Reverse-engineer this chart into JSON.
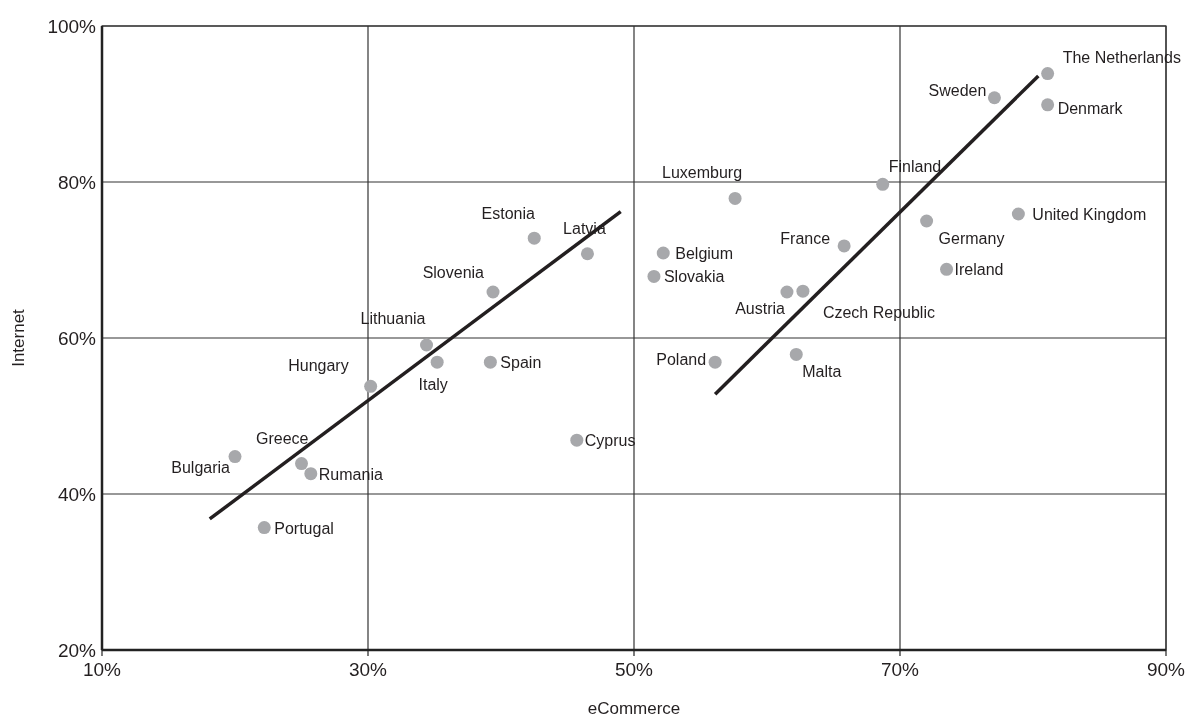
{
  "chart_data": {
    "type": "scatter",
    "xlabel": "eCommerce",
    "ylabel": "Internet",
    "xlim": [
      10,
      90
    ],
    "ylim": [
      20,
      100
    ],
    "xticks": [
      {
        "value": 10,
        "label": "10%"
      },
      {
        "value": 30,
        "label": "30%"
      },
      {
        "value": 50,
        "label": "50%"
      },
      {
        "value": 70,
        "label": "70%"
      },
      {
        "value": 90,
        "label": "90%"
      }
    ],
    "yticks": [
      {
        "value": 20,
        "label": "20%"
      },
      {
        "value": 40,
        "label": "40%"
      },
      {
        "value": 60,
        "label": "60%"
      },
      {
        "value": 80,
        "label": "80%"
      },
      {
        "value": 100,
        "label": "100%"
      }
    ],
    "grid": true,
    "series": [
      {
        "color": "#a7a8ab",
        "marker": "circle",
        "x": [
          42.5,
          46.5,
          39.4,
          34.4,
          35.2,
          39.2,
          30.2,
          45.7,
          20.0,
          25.0,
          25.7,
          22.2,
          81.1,
          77.1,
          81.1,
          68.7,
          57.6,
          78.9,
          72.0,
          65.8,
          52.2,
          51.5,
          73.5,
          61.5,
          62.7,
          56.1,
          62.2
        ],
        "values": [
          72.8,
          70.8,
          65.9,
          59.1,
          56.9,
          56.9,
          53.8,
          46.9,
          44.8,
          43.9,
          42.6,
          35.7,
          93.9,
          90.8,
          89.9,
          79.7,
          77.9,
          75.9,
          75.0,
          71.8,
          70.9,
          67.9,
          68.8,
          65.9,
          66.0,
          56.9,
          57.9
        ]
      },
      {
        "type": "line",
        "color": "#231f20",
        "x": [
          18.1,
          49.0
        ],
        "values": [
          36.8,
          76.2
        ],
        "marker": "none",
        "line_style": "solid"
      },
      {
        "type": "line",
        "color": "#231f20",
        "x": [
          56.1,
          80.4
        ],
        "values": [
          52.8,
          93.6
        ],
        "marker": "none",
        "line_style": "solid"
      }
    ],
    "annotations": [
      {
        "text": "Estonia",
        "x": 42.5,
        "y": 72.8
      },
      {
        "text": "Latvia",
        "x": 46.5,
        "y": 70.8
      },
      {
        "text": "Slovenia",
        "x": 39.4,
        "y": 65.9
      },
      {
        "text": "Lithuania",
        "x": 34.4,
        "y": 59.1
      },
      {
        "text": "Italy",
        "x": 35.2,
        "y": 56.9
      },
      {
        "text": "Spain",
        "x": 39.2,
        "y": 56.9
      },
      {
        "text": "Hungary",
        "x": 30.2,
        "y": 53.8
      },
      {
        "text": "Cyprus",
        "x": 45.7,
        "y": 46.9
      },
      {
        "text": "Bulgaria",
        "x": 20.0,
        "y": 44.8
      },
      {
        "text": "Greece",
        "x": 25.0,
        "y": 43.9
      },
      {
        "text": "Rumania",
        "x": 25.7,
        "y": 42.6
      },
      {
        "text": "Portugal",
        "x": 22.2,
        "y": 35.7
      },
      {
        "text": "The Netherlands",
        "x": 81.1,
        "y": 93.9
      },
      {
        "text": "Sweden",
        "x": 77.1,
        "y": 90.8
      },
      {
        "text": "Denmark",
        "x": 81.1,
        "y": 89.9
      },
      {
        "text": "Finland",
        "x": 68.7,
        "y": 79.7
      },
      {
        "text": "Luxemburg",
        "x": 57.6,
        "y": 77.9
      },
      {
        "text": "United Kingdom",
        "x": 78.9,
        "y": 75.9
      },
      {
        "text": "Germany",
        "x": 72.0,
        "y": 75.0
      },
      {
        "text": "France",
        "x": 65.8,
        "y": 71.8
      },
      {
        "text": "Belgium",
        "x": 52.2,
        "y": 70.9
      },
      {
        "text": "Slovakia",
        "x": 51.5,
        "y": 67.9
      },
      {
        "text": "Ireland",
        "x": 73.5,
        "y": 68.8
      },
      {
        "text": "Austria",
        "x": 61.5,
        "y": 65.9
      },
      {
        "text": "Czech Republic",
        "x": 62.7,
        "y": 66.0
      },
      {
        "text": "Poland",
        "x": 56.1,
        "y": 56.9
      },
      {
        "text": "Malta",
        "x": 62.2,
        "y": 57.9
      }
    ]
  }
}
